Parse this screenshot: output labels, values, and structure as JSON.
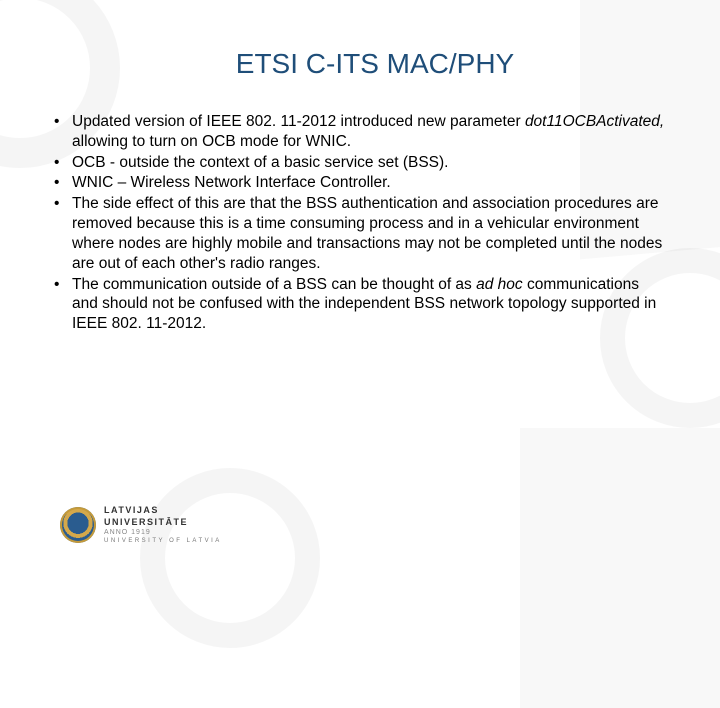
{
  "title": "ETSI C-ITS MAC/PHY",
  "title_color": "#1f4e79",
  "title_fontsize": 28,
  "body_fontsize": 15.5,
  "body_color": "#000000",
  "background_color": "#ffffff",
  "bullets": [
    {
      "segments": [
        {
          "text": "Updated version of IEEE 802. 11-2012 introduced new parameter ",
          "italic": false
        },
        {
          "text": "dot11OCBActivated, ",
          "italic": true
        },
        {
          "text": "allowing to turn on OCB mode for WNIC.",
          "italic": false
        }
      ]
    },
    {
      "segments": [
        {
          "text": "OCB - outside the context of a basic service set (BSS).",
          "italic": false
        }
      ]
    },
    {
      "segments": [
        {
          "text": "WNIC – Wireless Network Interface Controller.",
          "italic": false
        }
      ]
    },
    {
      "segments": [
        {
          "text": "The side effect of this are that the BSS authentication and association procedures are removed because this is a time consuming process and in a vehicular environment where nodes are highly mobile and transactions may not be completed until the nodes are out of each other's radio ranges.",
          "italic": false
        }
      ]
    },
    {
      "segments": [
        {
          "text": "The communication outside of a BSS can be thought of as ",
          "italic": false
        },
        {
          "text": "ad hoc ",
          "italic": true
        },
        {
          "text": "communications and should not be confused with the independent BSS network topology supported in IEEE 802. 11-2012.",
          "italic": false
        }
      ]
    }
  ],
  "logo": {
    "line1": "LATVIJAS",
    "line2": "UNIVERSITĀTE",
    "line3": "ANNO 1919",
    "line4": "UNIVERSITY OF LATVIA",
    "seal_color_outer": "#2a5c8f",
    "seal_color_gold": "#d4a84b"
  }
}
